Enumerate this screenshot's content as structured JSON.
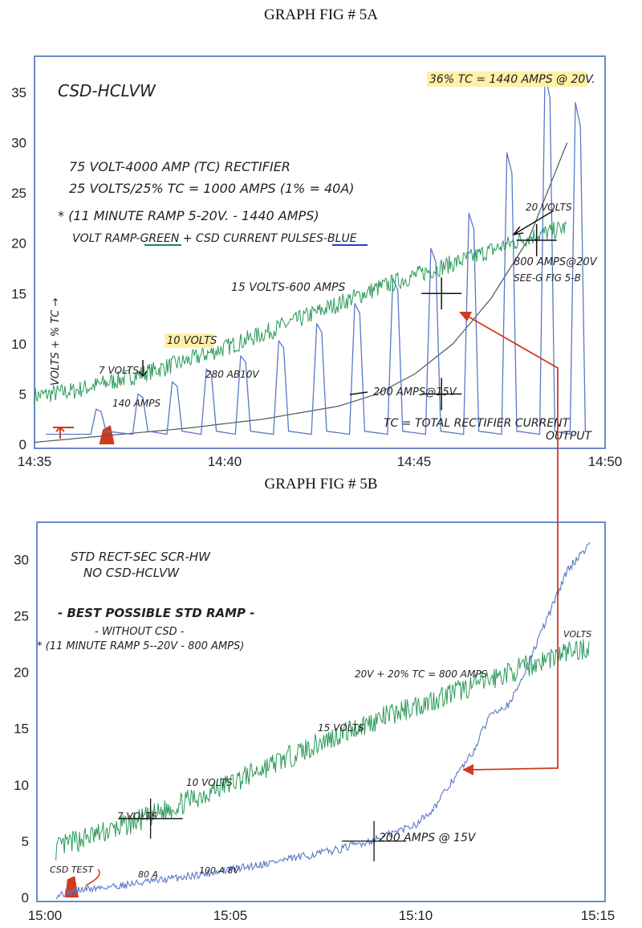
{
  "figA": {
    "title": "GRAPH FIG # 5A",
    "chart_data": {
      "type": "line",
      "xlim": [
        "14:35",
        "14:50"
      ],
      "ylim": [
        0,
        38
      ],
      "x_ticks": [
        "14:35",
        "14:40",
        "14:45",
        "14:50"
      ],
      "y_ticks": [
        0,
        5,
        10,
        15,
        20,
        25,
        30,
        35
      ],
      "ylabel": "VOLTS + % TC →",
      "grid": false,
      "series": [
        {
          "color": "#2a9a5a",
          "x": [
            0.0,
            1.0,
            2.0,
            3.0,
            4.0,
            5.0,
            6.0,
            7.0,
            8.0,
            9.0,
            10.0,
            11.0,
            11.5,
            12.0,
            13.0,
            14.0
          ],
          "y": [
            4.8,
            5.3,
            6.2,
            7.2,
            8.3,
            9.6,
            11.0,
            12.5,
            14.0,
            15.5,
            16.8,
            18.0,
            18.6,
            19.3,
            20.6,
            21.6
          ]
        },
        {
          "color": "#5a78c8",
          "pattern": "pulses",
          "base": 1.0,
          "x": [
            1.7,
            2.8,
            3.7,
            4.6,
            5.5,
            6.5,
            7.5,
            8.5,
            9.5,
            10.5,
            11.5,
            12.5,
            13.5,
            14.3
          ],
          "y": [
            3.5,
            5.0,
            6.2,
            7.5,
            8.8,
            10.3,
            12.0,
            14.0,
            16.5,
            19.5,
            23.0,
            29.0,
            37.0,
            34.0
          ]
        },
        {
          "color": "#555555",
          "x": [
            0.0,
            2.0,
            4.0,
            6.0,
            8.0,
            9.0,
            10.0,
            11.0,
            12.0,
            12.5,
            13.0,
            14.0
          ],
          "y": [
            0.2,
            0.9,
            1.6,
            2.5,
            3.8,
            5.0,
            7.0,
            10.0,
            14.5,
            17.5,
            20.5,
            30.0
          ]
        }
      ],
      "annotations": [
        "CSD-HCLVW",
        "75 VOLT-4000 AMP (TC) RECTIFIER",
        "25 VOLTS/25% TC = 1000 AMPS (1% = 40A)",
        "* (11 MINUTE RAMP 5-20V. - 1440 AMPS)",
        "VOLT RAMP-GREEN + CSD CURRENT PULSES-BLUE",
        "36% TC = 1440 AMPS @ 20V.",
        "20 VOLTS",
        "800 AMPS@20V",
        "SEE-G FIG 5-B",
        "15 VOLTS-600 AMPS",
        "10 VOLTS",
        "7 VOLTS",
        "140 AMPS",
        "280 AB10V",
        "200 AMPS@15V",
        "TC = TOTAL RECTIFIER CURRENT OUTPUT"
      ]
    }
  },
  "figB": {
    "title": "GRAPH FIG # 5B",
    "chart_data": {
      "type": "line",
      "xlim": [
        "15:00",
        "15:15"
      ],
      "ylim": [
        0,
        33
      ],
      "x_ticks": [
        "15:00",
        "15:05",
        "15:10",
        "15:15"
      ],
      "y_ticks": [
        0,
        5,
        10,
        15,
        20,
        25,
        30
      ],
      "grid": false,
      "series": [
        {
          "color": "#2a9a5a",
          "x": [
            0.5,
            1.0,
            2.0,
            3.0,
            4.0,
            5.0,
            6.0,
            7.0,
            8.0,
            9.0,
            10.0,
            11.0,
            12.0,
            13.0,
            14.0,
            14.6
          ],
          "y": [
            4.3,
            5.0,
            6.0,
            7.2,
            8.6,
            10.0,
            11.5,
            13.0,
            14.5,
            15.8,
            17.0,
            18.2,
            19.4,
            20.6,
            21.8,
            22.2
          ]
        },
        {
          "color": "#5a78c8",
          "x": [
            0.5,
            1.0,
            2.0,
            3.0,
            4.0,
            5.0,
            6.0,
            7.0,
            8.0,
            9.0,
            10.0,
            10.5,
            11.0,
            11.5,
            12.0,
            12.5,
            13.0,
            13.5,
            14.0,
            14.6
          ],
          "y": [
            0.2,
            0.6,
            1.0,
            1.4,
            1.9,
            2.4,
            3.0,
            3.6,
            4.3,
            5.2,
            6.5,
            8.0,
            10.5,
            12.8,
            16.5,
            17.2,
            21.0,
            25.0,
            29.0,
            31.5
          ]
        }
      ],
      "annotations": [
        "STD RECT-SEC SCR-HW",
        "NO CSD-HCLVW",
        "- BEST POSSIBLE STD RAMP -",
        "- WITHOUT CSD -",
        "* (11 MINUTE RAMP 5--20V - 800 AMPS)",
        "20V + 20% TC = 800 AMPS",
        "VOLTS",
        "15 VOLTS",
        "10 VOLTS",
        "7 VOLTS",
        "200 AMPS @ 15V",
        "CSD TEST",
        "80 A",
        "100 A 8V"
      ]
    }
  },
  "colors": {
    "green": "#2a9a5a",
    "blue": "#5a78c8",
    "gray": "#555555",
    "red": "#d03a1e",
    "frame": "#6a8ccc",
    "highlight": "#fff0a8"
  }
}
